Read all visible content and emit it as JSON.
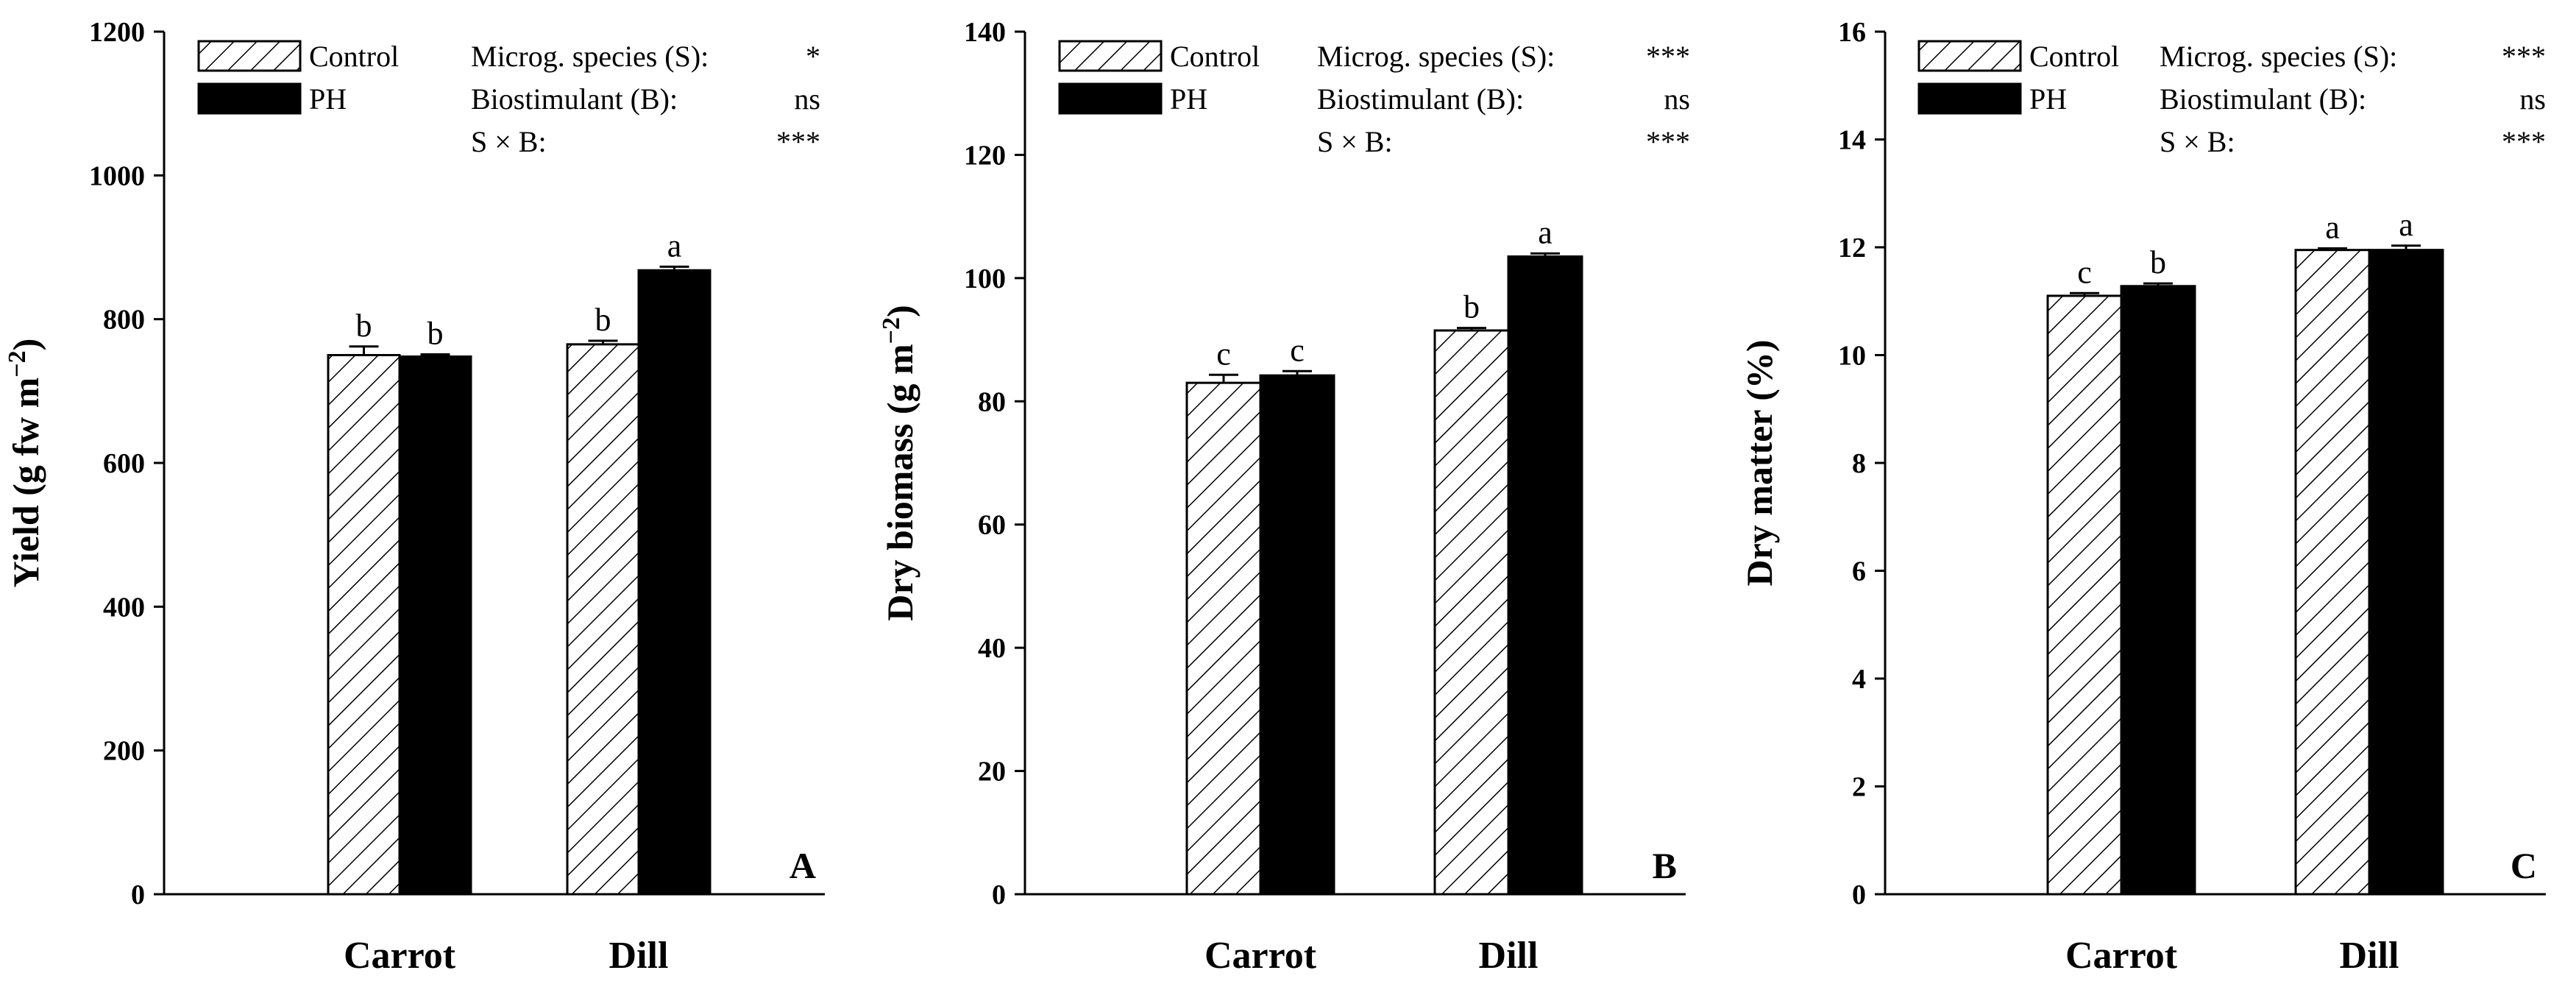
{
  "figure_title": "",
  "chart_data": [
    {
      "type": "bar",
      "panel_label": "A",
      "title": "",
      "xlabel": "",
      "ylabel": "Yield (g fw m",
      "ylabel_sup": "−2",
      "ylabel_close": ")",
      "ylim": [
        0,
        1200
      ],
      "yticks": [
        0,
        200,
        400,
        600,
        800,
        1000,
        1200
      ],
      "categories": [
        "Carrot",
        "Dill"
      ],
      "series": [
        {
          "name": "Control",
          "pattern": "hatch",
          "values": [
            750,
            765
          ],
          "errors": [
            12,
            5
          ],
          "letters": [
            "b",
            "b"
          ]
        },
        {
          "name": "PH",
          "pattern": "solid",
          "values": [
            748,
            868
          ],
          "errors": [
            3,
            5
          ],
          "letters": [
            "b",
            "a"
          ]
        }
      ],
      "legend_position": "top-left",
      "stats": [
        {
          "label": "Microg. species (S):",
          "value": "*"
        },
        {
          "label": "Biostimulant (B):",
          "value": "ns"
        },
        {
          "label": "S × B:",
          "value": "***"
        }
      ]
    },
    {
      "type": "bar",
      "panel_label": "B",
      "title": "",
      "xlabel": "",
      "ylabel": "Dry biomass (g m",
      "ylabel_sup": "−2",
      "ylabel_close": ")",
      "ylim": [
        0,
        140
      ],
      "yticks": [
        0,
        20,
        40,
        60,
        80,
        100,
        120,
        140
      ],
      "categories": [
        "Carrot",
        "Dill"
      ],
      "series": [
        {
          "name": "Control",
          "pattern": "hatch",
          "values": [
            83,
            91.5
          ],
          "errors": [
            1.3,
            0.4
          ],
          "letters": [
            "c",
            "b"
          ]
        },
        {
          "name": "PH",
          "pattern": "solid",
          "values": [
            84.2,
            103.5
          ],
          "errors": [
            0.7,
            0.5
          ],
          "letters": [
            "c",
            "a"
          ]
        }
      ],
      "legend_position": "top-left",
      "stats": [
        {
          "label": "Microg. species (S):",
          "value": "***"
        },
        {
          "label": "Biostimulant (B):",
          "value": "ns"
        },
        {
          "label": "S × B:",
          "value": "***"
        }
      ]
    },
    {
      "type": "bar",
      "panel_label": "C",
      "title": "",
      "xlabel": "",
      "ylabel": "Dry matter (%)",
      "ylabel_sup": "",
      "ylabel_close": "",
      "ylim": [
        0,
        16
      ],
      "yticks": [
        0,
        2,
        4,
        6,
        8,
        10,
        12,
        14,
        16
      ],
      "categories": [
        "Carrot",
        "Dill"
      ],
      "series": [
        {
          "name": "Control",
          "pattern": "hatch",
          "values": [
            11.1,
            11.95
          ],
          "errors": [
            0.05,
            0.03
          ],
          "letters": [
            "c",
            "a"
          ]
        },
        {
          "name": "PH",
          "pattern": "solid",
          "values": [
            11.28,
            11.95
          ],
          "errors": [
            0.05,
            0.08
          ],
          "letters": [
            "b",
            "a"
          ]
        }
      ],
      "legend_position": "top-left",
      "stats": [
        {
          "label": "Microg. species (S):",
          "value": "***"
        },
        {
          "label": "Biostimulant (B):",
          "value": "ns"
        },
        {
          "label": "S × B:",
          "value": "***"
        }
      ]
    }
  ]
}
